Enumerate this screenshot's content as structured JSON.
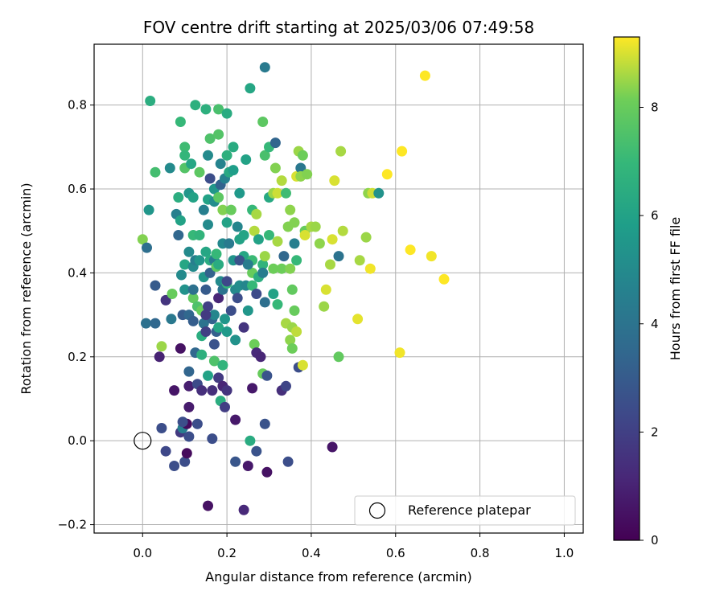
{
  "chart_data": {
    "type": "scatter",
    "title": "FOV centre drift starting at 2025/03/06 07:49:58",
    "xlabel": "Angular distance from reference (arcmin)",
    "ylabel": "Rotation from reference (arcmin)",
    "xlim": [
      -0.115,
      1.045
    ],
    "ylim": [
      -0.22,
      0.945
    ],
    "x_ticks": [
      0.0,
      0.2,
      0.4,
      0.6,
      0.8,
      1.0
    ],
    "x_tick_labels": [
      "0.0",
      "0.2",
      "0.4",
      "0.6",
      "0.8",
      "1.0"
    ],
    "y_ticks": [
      -0.2,
      0.0,
      0.2,
      0.4,
      0.6,
      0.8
    ],
    "y_tick_labels": [
      "−0.2",
      "0.0",
      "0.2",
      "0.4",
      "0.6",
      "0.8"
    ],
    "grid": true,
    "colormap": "viridis",
    "colorbar": {
      "label": "Hours from first FF file",
      "range": [
        0,
        9.3
      ],
      "ticks": [
        0,
        2,
        4,
        6,
        8
      ],
      "tick_labels": [
        "0",
        "2",
        "4",
        "6",
        "8"
      ]
    },
    "legend": {
      "position": "lower-right",
      "entries": [
        {
          "label": "Reference platepar",
          "marker": "open-circle",
          "x": 0.0,
          "y": 0.0
        }
      ]
    },
    "points": [
      [
        0.0,
        0.48,
        8.3
      ],
      [
        0.015,
        0.55,
        5.5
      ],
      [
        0.018,
        0.81,
        6.5
      ],
      [
        0.03,
        0.64,
        7.3
      ],
      [
        0.01,
        0.46,
        3.8
      ],
      [
        0.008,
        0.28,
        3.9
      ],
      [
        0.03,
        0.28,
        3.5
      ],
      [
        0.03,
        0.37,
        3.0
      ],
      [
        0.04,
        0.2,
        1.0
      ],
      [
        0.045,
        0.225,
        8.5
      ],
      [
        0.045,
        0.03,
        2.5
      ],
      [
        0.055,
        -0.025,
        2.3
      ],
      [
        0.055,
        0.335,
        1.6
      ],
      [
        0.065,
        0.65,
        5.0
      ],
      [
        0.068,
        0.29,
        4.2
      ],
      [
        0.07,
        0.35,
        8.0
      ],
      [
        0.075,
        0.12,
        0.6
      ],
      [
        0.075,
        -0.06,
        2.5
      ],
      [
        0.08,
        0.54,
        4.5
      ],
      [
        0.085,
        0.58,
        6.5
      ],
      [
        0.085,
        0.49,
        3.5
      ],
      [
        0.09,
        0.76,
        7.0
      ],
      [
        0.09,
        0.525,
        6.0
      ],
      [
        0.092,
        0.395,
        5.0
      ],
      [
        0.095,
        0.3,
        3.0
      ],
      [
        0.09,
        0.22,
        0.5
      ],
      [
        0.09,
        0.02,
        1.8
      ],
      [
        0.095,
        0.03,
        4.5
      ],
      [
        0.1,
        0.7,
        7.2
      ],
      [
        0.1,
        0.68,
        6.9
      ],
      [
        0.1,
        0.65,
        7.6
      ],
      [
        0.1,
        0.42,
        6.2
      ],
      [
        0.1,
        0.36,
        5.3
      ],
      [
        0.1,
        -0.05,
        2.5
      ],
      [
        0.105,
        0.04,
        0.3
      ],
      [
        0.105,
        -0.03,
        0.3
      ],
      [
        0.11,
        0.59,
        5.5
      ],
      [
        0.11,
        0.45,
        5.0
      ],
      [
        0.11,
        0.3,
        3.5
      ],
      [
        0.11,
        0.165,
        3.4
      ],
      [
        0.11,
        0.13,
        0.9
      ],
      [
        0.11,
        0.08,
        0.8
      ],
      [
        0.11,
        0.01,
        2.5
      ],
      [
        0.115,
        0.66,
        6.2
      ],
      [
        0.12,
        0.58,
        6.0
      ],
      [
        0.12,
        0.49,
        7.0
      ],
      [
        0.12,
        0.415,
        5.0
      ],
      [
        0.12,
        0.34,
        7.9
      ],
      [
        0.12,
        0.285,
        3.1
      ],
      [
        0.125,
        0.8,
        6.6
      ],
      [
        0.125,
        0.43,
        4.5
      ],
      [
        0.125,
        0.21,
        3.5
      ],
      [
        0.13,
        0.04,
        2.5
      ],
      [
        0.13,
        0.32,
        7.5
      ],
      [
        0.13,
        0.135,
        2.4
      ],
      [
        0.135,
        0.64,
        7.8
      ],
      [
        0.135,
        0.49,
        6.8
      ],
      [
        0.135,
        0.43,
        5.5
      ],
      [
        0.14,
        0.31,
        8.0
      ],
      [
        0.14,
        0.25,
        6.5
      ],
      [
        0.14,
        0.205,
        6.6
      ],
      [
        0.14,
        0.12,
        1.4
      ],
      [
        0.145,
        0.39,
        5.5
      ],
      [
        0.145,
        0.28,
        4.0
      ],
      [
        0.145,
        0.55,
        4.5
      ],
      [
        0.15,
        0.79,
        6.6
      ],
      [
        0.15,
        0.45,
        6.2
      ],
      [
        0.15,
        0.36,
        3.0
      ],
      [
        0.15,
        0.26,
        2.0
      ],
      [
        0.155,
        0.32,
        2.0
      ],
      [
        0.155,
        0.155,
        6.0
      ],
      [
        0.155,
        0.68,
        5.0
      ],
      [
        0.155,
        0.575,
        6.0
      ],
      [
        0.155,
        0.515,
        5.0
      ],
      [
        0.16,
        0.625,
        2.5
      ],
      [
        0.16,
        0.43,
        6.4
      ],
      [
        0.16,
        0.4,
        3.3
      ],
      [
        0.16,
        0.72,
        7.5
      ],
      [
        0.165,
        0.005,
        2.5
      ],
      [
        0.165,
        0.29,
        3.3
      ],
      [
        0.165,
        0.12,
        1.4
      ],
      [
        0.17,
        0.6,
        5.5
      ],
      [
        0.17,
        0.57,
        5.1
      ],
      [
        0.17,
        0.43,
        4.4
      ],
      [
        0.17,
        0.3,
        4.8
      ],
      [
        0.17,
        0.23,
        2.7
      ],
      [
        0.17,
        0.19,
        7.5
      ],
      [
        0.175,
        0.445,
        7.0
      ],
      [
        0.175,
        0.415,
        7.8
      ],
      [
        0.175,
        0.26,
        3.2
      ],
      [
        0.18,
        0.79,
        7.4
      ],
      [
        0.18,
        0.73,
        7.6
      ],
      [
        0.18,
        0.58,
        7.8
      ],
      [
        0.18,
        0.42,
        6.4
      ],
      [
        0.18,
        0.34,
        1.1
      ],
      [
        0.18,
        0.27,
        6.2
      ],
      [
        0.18,
        0.15,
        1.8
      ],
      [
        0.185,
        0.66,
        4.7
      ],
      [
        0.185,
        0.61,
        3.3
      ],
      [
        0.185,
        0.38,
        5.0
      ],
      [
        0.185,
        0.095,
        6.5
      ],
      [
        0.19,
        0.55,
        8.3
      ],
      [
        0.19,
        0.47,
        4.9
      ],
      [
        0.19,
        0.36,
        4.0
      ],
      [
        0.19,
        0.18,
        6.8
      ],
      [
        0.19,
        0.13,
        1.1
      ],
      [
        0.195,
        0.625,
        4.6
      ],
      [
        0.195,
        0.29,
        5.5
      ],
      [
        0.195,
        0.08,
        1.9
      ],
      [
        0.2,
        0.78,
        6.4
      ],
      [
        0.2,
        0.68,
        6.6
      ],
      [
        0.2,
        0.52,
        6.0
      ],
      [
        0.2,
        0.375,
        6.9
      ],
      [
        0.2,
        0.26,
        5.6
      ],
      [
        0.2,
        0.12,
        1.6
      ],
      [
        0.205,
        0.64,
        6.3
      ],
      [
        0.205,
        0.47,
        4.3
      ],
      [
        0.21,
        0.55,
        8.0
      ],
      [
        0.21,
        0.31,
        2.5
      ],
      [
        0.215,
        0.7,
        6.4
      ],
      [
        0.215,
        0.645,
        5.8
      ],
      [
        0.215,
        0.43,
        5.4
      ],
      [
        0.22,
        0.36,
        5.0
      ],
      [
        0.22,
        0.24,
        5.3
      ],
      [
        0.22,
        0.05,
        0.7
      ],
      [
        0.22,
        -0.05,
        2.8
      ],
      [
        0.225,
        0.51,
        4.8
      ],
      [
        0.225,
        0.34,
        2.5
      ],
      [
        0.23,
        0.59,
        5.6
      ],
      [
        0.23,
        0.48,
        6.0
      ],
      [
        0.23,
        0.37,
        5.1
      ],
      [
        0.24,
        0.44,
        6.2
      ],
      [
        0.24,
        0.49,
        6.1
      ],
      [
        0.24,
        0.27,
        1.6
      ],
      [
        0.245,
        0.67,
        6.0
      ],
      [
        0.245,
        0.37,
        4.8
      ],
      [
        0.25,
        0.31,
        5.5
      ],
      [
        0.25,
        -0.06,
        0.7
      ],
      [
        0.255,
        0.84,
        6.2
      ],
      [
        0.255,
        0.0,
        6.4
      ],
      [
        0.26,
        0.55,
        7.0
      ],
      [
        0.26,
        0.43,
        7.1
      ],
      [
        0.26,
        0.4,
        8.0
      ],
      [
        0.26,
        0.37,
        7.0
      ],
      [
        0.26,
        0.125,
        0.7
      ],
      [
        0.265,
        0.5,
        8.7
      ],
      [
        0.265,
        0.23,
        8.1
      ],
      [
        0.27,
        0.54,
        8.6
      ],
      [
        0.27,
        0.35,
        2.4
      ],
      [
        0.27,
        -0.025,
        2.7
      ],
      [
        0.27,
        0.21,
        1.2
      ],
      [
        0.275,
        0.48,
        6.0
      ],
      [
        0.275,
        0.39,
        6.5
      ],
      [
        0.28,
        0.2,
        1.1
      ],
      [
        0.285,
        0.76,
        7.8
      ],
      [
        0.285,
        0.42,
        6.8
      ],
      [
        0.285,
        0.4,
        4.4
      ],
      [
        0.285,
        0.16,
        8.0
      ],
      [
        0.29,
        0.89,
        4.3
      ],
      [
        0.29,
        0.68,
        7.4
      ],
      [
        0.29,
        0.44,
        8.5
      ],
      [
        0.29,
        0.33,
        3.8
      ],
      [
        0.29,
        0.04,
        2.7
      ],
      [
        0.295,
        0.155,
        2.7
      ],
      [
        0.295,
        -0.075,
        0.5
      ],
      [
        0.3,
        0.7,
        7.0
      ],
      [
        0.3,
        0.58,
        6.3
      ],
      [
        0.3,
        0.49,
        7.0
      ],
      [
        0.31,
        0.59,
        8.5
      ],
      [
        0.31,
        0.41,
        8.1
      ],
      [
        0.31,
        0.35,
        6.0
      ],
      [
        0.315,
        0.71,
        3.4
      ],
      [
        0.315,
        0.65,
        8.3
      ],
      [
        0.32,
        0.59,
        8.9
      ],
      [
        0.32,
        0.325,
        7.0
      ],
      [
        0.32,
        0.475,
        8.6
      ],
      [
        0.33,
        0.12,
        1.4
      ],
      [
        0.33,
        0.62,
        8.7
      ],
      [
        0.33,
        0.41,
        8.1
      ],
      [
        0.335,
        0.44,
        3.5
      ],
      [
        0.34,
        0.59,
        7.2
      ],
      [
        0.34,
        0.28,
        8.6
      ],
      [
        0.34,
        0.13,
        2.2
      ],
      [
        0.345,
        0.51,
        8.3
      ],
      [
        0.345,
        -0.05,
        2.5
      ],
      [
        0.35,
        0.55,
        8.4
      ],
      [
        0.35,
        0.41,
        8.3
      ],
      [
        0.35,
        0.24,
        8.4
      ],
      [
        0.355,
        0.36,
        7.9
      ],
      [
        0.355,
        0.27,
        8.5
      ],
      [
        0.355,
        0.22,
        8.1
      ],
      [
        0.36,
        0.52,
        8.3
      ],
      [
        0.36,
        0.47,
        4.5
      ],
      [
        0.36,
        0.31,
        8.0
      ],
      [
        0.365,
        0.63,
        9.0
      ],
      [
        0.365,
        0.43,
        7.0
      ],
      [
        0.365,
        0.26,
        8.8
      ],
      [
        0.37,
        0.69,
        8.5
      ],
      [
        0.37,
        0.175,
        2.5
      ],
      [
        0.375,
        0.65,
        4.2
      ],
      [
        0.375,
        0.63,
        8.4
      ],
      [
        0.38,
        0.68,
        8.1
      ],
      [
        0.38,
        0.18,
        9.0
      ],
      [
        0.385,
        0.5,
        8.0
      ],
      [
        0.385,
        0.49,
        9.0
      ],
      [
        0.39,
        0.635,
        8.3
      ],
      [
        0.4,
        0.51,
        8.6
      ],
      [
        0.41,
        0.51,
        8.5
      ],
      [
        0.42,
        0.47,
        8.4
      ],
      [
        0.43,
        0.32,
        8.5
      ],
      [
        0.435,
        0.36,
        9.0
      ],
      [
        0.445,
        0.42,
        8.6
      ],
      [
        0.45,
        0.48,
        9.0
      ],
      [
        0.45,
        -0.015,
        0.6
      ],
      [
        0.455,
        0.62,
        9.0
      ],
      [
        0.465,
        0.2,
        7.9
      ],
      [
        0.465,
        0.44,
        4.0
      ],
      [
        0.47,
        0.69,
        8.6
      ],
      [
        0.475,
        0.5,
        8.7
      ],
      [
        0.51,
        0.29,
        9.1
      ],
      [
        0.515,
        0.43,
        8.6
      ],
      [
        0.53,
        0.485,
        8.5
      ],
      [
        0.535,
        0.59,
        8.4
      ],
      [
        0.54,
        0.41,
        9.2
      ],
      [
        0.545,
        0.59,
        8.9
      ],
      [
        0.56,
        0.59,
        5.3
      ],
      [
        0.58,
        0.635,
        9.3
      ],
      [
        0.61,
        0.21,
        9.2
      ],
      [
        0.615,
        0.69,
        9.3
      ],
      [
        0.635,
        0.455,
        9.3
      ],
      [
        0.67,
        0.87,
        9.3
      ],
      [
        0.685,
        0.44,
        9.2
      ],
      [
        0.715,
        0.385,
        9.3
      ],
      [
        0.155,
        -0.155,
        0.5
      ],
      [
        0.24,
        -0.165,
        1.2
      ],
      [
        0.095,
        0.045,
        2.5
      ],
      [
        0.12,
        0.36,
        3.9
      ],
      [
        0.15,
        0.3,
        1.8
      ],
      [
        0.2,
        0.38,
        2.3
      ],
      [
        0.23,
        0.43,
        2.7
      ],
      [
        0.25,
        0.42,
        4.4
      ]
    ]
  }
}
